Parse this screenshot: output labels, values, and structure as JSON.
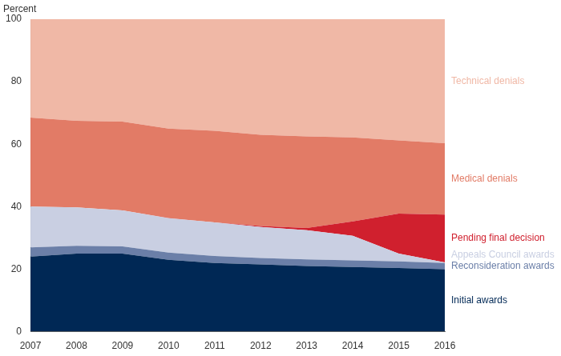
{
  "chart_data": {
    "type": "area",
    "stacked": true,
    "y_label": "Percent",
    "categories": [
      "2007",
      "2008",
      "2009",
      "2010",
      "2011",
      "2012",
      "2013",
      "2014",
      "2015",
      "2016"
    ],
    "series": [
      {
        "name": "Initial awards",
        "color": "#002855",
        "values": [
          24,
          25,
          25,
          23,
          22,
          21.5,
          21,
          20.7,
          20.4,
          20
        ]
      },
      {
        "name": "Reconsideration awards",
        "color": "#6b7fa8",
        "values": [
          3,
          2.5,
          2.3,
          2.3,
          2.2,
          2.1,
          2.1,
          2.1,
          2.1,
          2
        ]
      },
      {
        "name": "Appeals Council awards",
        "color": "#c9cfe2",
        "values": [
          13,
          12.3,
          11.5,
          11,
          10.8,
          9.9,
          9.4,
          7.9,
          2.5,
          0.2
        ]
      },
      {
        "name": "Pending final decision",
        "color": "#d0202e",
        "values": [
          0,
          0,
          0,
          0.1,
          0,
          0.3,
          0.7,
          4.6,
          12.8,
          15.3
        ]
      },
      {
        "name": "Medical denials",
        "color": "#e27b66",
        "values": [
          28.5,
          27.7,
          28.4,
          28.6,
          29.3,
          29.2,
          29.3,
          26.9,
          23.4,
          22.8
        ]
      },
      {
        "name": "Technical denials",
        "color": "#f0b8a6",
        "values": [
          31.5,
          32.5,
          32.8,
          35,
          35.7,
          37,
          37.5,
          37.8,
          38.8,
          39.7
        ]
      }
    ],
    "ylim": [
      0,
      100
    ],
    "yticks": [
      0,
      20,
      40,
      60,
      80,
      100
    ],
    "grid": false,
    "legend": "right"
  }
}
